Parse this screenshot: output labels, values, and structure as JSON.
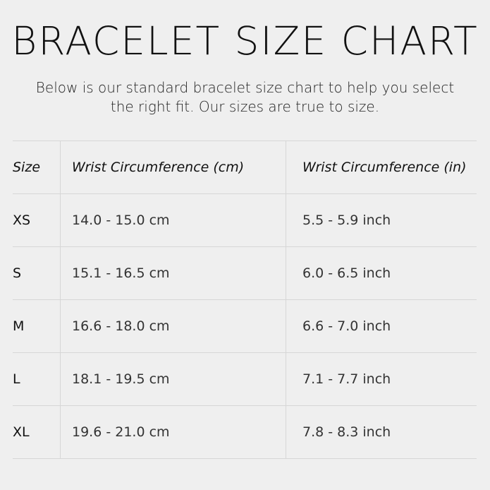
{
  "title": "BRACELET SIZE CHART",
  "subtitle": "Below is our standard bracelet size chart to help you select the right fit. Our sizes are true to size.",
  "table": {
    "headers": [
      "Size",
      "Wrist Circumference (cm)",
      "Wrist Circumference (in)"
    ],
    "rows": [
      [
        "XS",
        "14.0 - 15.0 cm",
        "5.5 - 5.9 inch"
      ],
      [
        "S",
        "15.1 - 16.5 cm",
        "6.0 - 6.5 inch"
      ],
      [
        "M",
        "16.6 - 18.0 cm",
        "6.6 - 7.0 inch"
      ],
      [
        "L",
        "18.1 - 19.5 cm",
        "7.1 - 7.7 inch"
      ],
      [
        "XL",
        "19.6 - 21.0 cm",
        "7.8 - 8.3 inch"
      ]
    ]
  }
}
